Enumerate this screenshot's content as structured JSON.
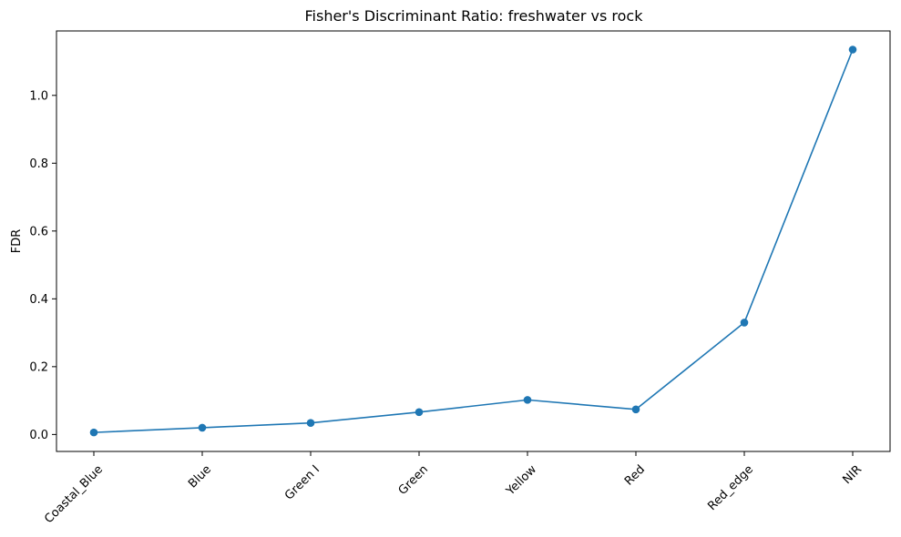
{
  "chart_data": {
    "type": "line",
    "title": "Fisher's Discriminant Ratio: freshwater vs rock",
    "xlabel": "",
    "ylabel": "FDR",
    "categories": [
      "Coastal_Blue",
      "Blue",
      "Green I",
      "Green",
      "Yellow",
      "Red",
      "Red_edge",
      "NIR"
    ],
    "series": [
      {
        "values": [
          0.006,
          0.02,
          0.034,
          0.066,
          0.102,
          0.074,
          0.33,
          1.135
        ],
        "color": "#1f77b4",
        "marker": "circle"
      }
    ],
    "yticks": [
      0.0,
      0.2,
      0.4,
      0.6,
      0.8,
      1.0
    ],
    "ytick_labels": [
      "0.0",
      "0.2",
      "0.4",
      "0.6",
      "0.8",
      "1.0"
    ],
    "ylim": [
      -0.05,
      1.19
    ],
    "grid": false,
    "xtick_rotation": 45
  }
}
